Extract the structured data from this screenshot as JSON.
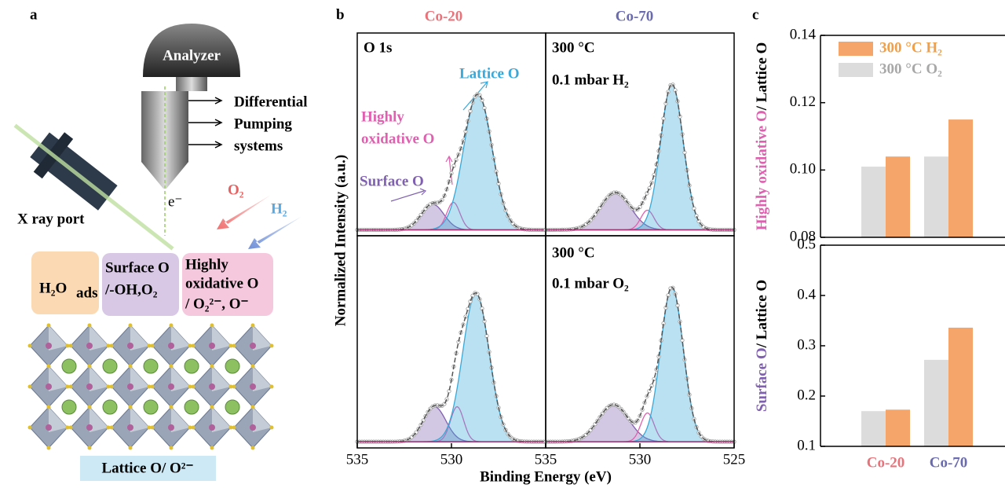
{
  "diagram": {
    "panel_label": "a",
    "analyzer": "Analyzer",
    "pumping": [
      "Differential",
      "Pumping",
      "systems"
    ],
    "xray": "X ray port",
    "electron": "e⁻",
    "gases": [
      "O₂",
      "H₂"
    ],
    "boxes": [
      [
        "H₂O",
        "ads"
      ],
      [
        "Surface O",
        "/-OH,O₂"
      ],
      [
        "Highly",
        "oxidative O",
        "/ O₂²⁻, O⁻"
      ]
    ],
    "lattice": "Lattice O/ O²⁻"
  },
  "figure": {
    "labels": [
      "b",
      "c"
    ],
    "columns": [
      {
        "text": "Co-20",
        "color": "#e8737a"
      },
      {
        "text": "Co-70",
        "color": "#6a6aaf"
      }
    ],
    "xlabel": "Binding Energy (eV)",
    "ylabel": "Normalized Intensity (a.u.)"
  },
  "chart_data": [
    {
      "type": "xps",
      "xlim": [
        535,
        525
      ],
      "ylim": [
        -0.03,
        1
      ],
      "annotations": [
        {
          "text": "O 1s",
          "color": "#000000"
        },
        {
          "text": "Lattice O",
          "color": "#3aa8d8"
        },
        {
          "text": "Highly",
          "color": "#e060b0"
        },
        {
          "text": "oxidative O",
          "color": "#e060b0"
        },
        {
          "text": "Surface O",
          "color": "#8060b0"
        }
      ],
      "peaks": [
        {
          "center": 531,
          "height": 0.13,
          "width": 0.6,
          "color": "#8060b0"
        },
        {
          "center": 529.9,
          "height": 0.14,
          "width": 0.35,
          "color": "#e060b0"
        },
        {
          "center": 528.6,
          "height": 0.69,
          "width": 0.75,
          "color": "#3aa8d8"
        }
      ]
    },
    {
      "type": "xps",
      "xlim": [
        535,
        525
      ],
      "ylim": [
        -0.03,
        1
      ],
      "annotations": [
        {
          "text": "300 °C",
          "color": "#000000"
        },
        {
          "text": "0.1 mbar H₂",
          "color": "#000000"
        }
      ],
      "peaks": [
        {
          "center": 531.3,
          "height": 0.19,
          "width": 0.8,
          "color": "#8060b0"
        },
        {
          "center": 529.6,
          "height": 0.1,
          "width": 0.35,
          "color": "#e060b0"
        },
        {
          "center": 528.3,
          "height": 0.74,
          "width": 0.6,
          "color": "#3aa8d8"
        }
      ]
    },
    {
      "type": "xps",
      "xlim": [
        535,
        525
      ],
      "ylim": [
        -0.03,
        1
      ],
      "xticks": [
        535,
        530
      ],
      "annotations": [],
      "peaks": [
        {
          "center": 530.9,
          "height": 0.17,
          "width": 0.6,
          "color": "#8060b0"
        },
        {
          "center": 529.7,
          "height": 0.17,
          "width": 0.35,
          "color": "#e060b0"
        },
        {
          "center": 528.7,
          "height": 0.72,
          "width": 0.7,
          "color": "#3aa8d8"
        }
      ]
    },
    {
      "type": "xps",
      "xlim": [
        535,
        525
      ],
      "ylim": [
        -0.03,
        1
      ],
      "xticks": [
        535,
        530,
        525
      ],
      "annotations": [
        {
          "text": "300 °C",
          "color": "#000000"
        },
        {
          "text": "0.1 mbar O₂",
          "color": "#000000"
        }
      ],
      "peaks": [
        {
          "center": 531.4,
          "height": 0.18,
          "width": 0.8,
          "color": "#8060b0"
        },
        {
          "center": 529.6,
          "height": 0.14,
          "width": 0.35,
          "color": "#e060b0"
        },
        {
          "center": 528.3,
          "height": 0.75,
          "width": 0.6,
          "color": "#3aa8d8"
        }
      ]
    },
    {
      "type": "bar",
      "ylabel": [
        {
          "text": "Highly oxidative O",
          "color": "#e060b0"
        },
        {
          "text": "/ Lattice O",
          "color": "#000000"
        }
      ],
      "categories": [
        null,
        null
      ],
      "ylim": [
        0.08,
        0.14
      ],
      "yticks": [
        0.08,
        {
          "value": 0.1,
          "label": "0.10"
        },
        0.12,
        0.14
      ],
      "series": [
        {
          "name": "300 °C H₂",
          "color": "#f5a46a",
          "label_color": "#f0a04a",
          "values": [
            0.104,
            0.115
          ]
        },
        {
          "name": "300 °C O₂",
          "color": "#dcdcdc",
          "label_color": "#a8a8a8",
          "values": [
            0.101,
            0.104
          ]
        }
      ]
    },
    {
      "type": "bar",
      "ylabel": [
        {
          "text": "Surface O",
          "color": "#8060b0"
        },
        {
          "text": "/ Lattice O",
          "color": "#000000"
        }
      ],
      "categories": [
        "Co-20",
        "Co-70"
      ],
      "category_colors": [
        "#e8737a",
        "#6a6aaf"
      ],
      "ylim": [
        0.1,
        0.5
      ],
      "yticks": [
        0.1,
        0.2,
        0.3,
        0.4,
        0.5
      ],
      "series": [
        {
          "color": "#f5a46a",
          "values": [
            0.173,
            0.336
          ]
        },
        {
          "color": "#dcdcdc",
          "values": [
            0.17,
            0.272
          ]
        }
      ]
    }
  ]
}
